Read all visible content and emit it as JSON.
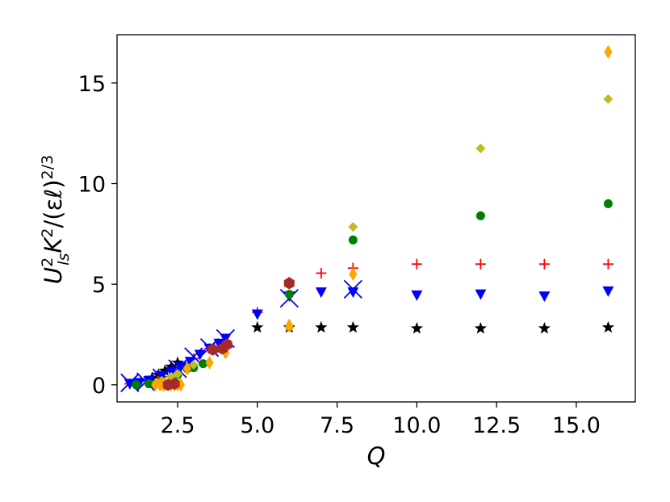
{
  "chart_data": {
    "type": "scatter",
    "title": "",
    "xlabel": "Q",
    "ylabel": "U_{ls}^2 K^2 / (εℓ)^{2/3}",
    "xlim": [
      0.6,
      16.85
    ],
    "ylim": [
      -0.85,
      17.4
    ],
    "xticks": [
      2.5,
      5.0,
      7.5,
      10.0,
      12.5,
      15.0
    ],
    "xtick_labels": [
      "2.5",
      "5.0",
      "7.5",
      "10.0",
      "12.5",
      "15.0"
    ],
    "yticks": [
      0,
      5,
      10,
      15
    ],
    "ytick_labels": [
      "0",
      "5",
      "10",
      "15"
    ],
    "grid": false,
    "legend": "none",
    "series": [
      {
        "marker": "star",
        "color": "#000000",
        "x": [
          1.7,
          1.9,
          2.1,
          2.3,
          2.5,
          5,
          6,
          7,
          8,
          10,
          12,
          14,
          16
        ],
        "y": [
          0.35,
          0.5,
          0.7,
          0.9,
          1.1,
          2.85,
          2.85,
          2.85,
          2.85,
          2.8,
          2.8,
          2.8,
          2.85
        ]
      },
      {
        "marker": "plus",
        "color": "#ff0000",
        "x": [
          1.0,
          1.5,
          2.0,
          2.5,
          3.0,
          3.5,
          4.0,
          5,
          6,
          7,
          8,
          10,
          12,
          14,
          16
        ],
        "y": [
          0.05,
          0.2,
          0.4,
          0.85,
          1.3,
          1.8,
          2.2,
          3.6,
          5.1,
          5.55,
          5.8,
          6.0,
          6.0,
          6.0,
          6.0
        ]
      },
      {
        "marker": "triangle-down",
        "color": "#0000ff",
        "x": [
          1.0,
          1.3,
          1.6,
          2.0,
          2.3,
          2.6,
          2.9,
          3.2,
          3.5,
          3.8,
          4.0,
          5,
          6,
          7,
          8,
          10,
          12,
          14,
          16
        ],
        "y": [
          0.05,
          0.1,
          0.2,
          0.45,
          0.65,
          0.9,
          1.15,
          1.5,
          1.8,
          2.05,
          2.3,
          3.5,
          4.4,
          4.6,
          4.6,
          4.45,
          4.5,
          4.4,
          4.65
        ]
      },
      {
        "marker": "x",
        "color": "#0000ff",
        "x": [
          1.0,
          1.5,
          2.0,
          2.5,
          3.0,
          3.5,
          4.0,
          6,
          8
        ],
        "y": [
          0.1,
          0.15,
          0.35,
          0.8,
          1.4,
          1.85,
          2.3,
          4.3,
          4.75
        ]
      },
      {
        "marker": "circle",
        "color": "#008000",
        "x": [
          1.2,
          1.6,
          2.0,
          2.5,
          2.8,
          3.0,
          3.3,
          6,
          8,
          12,
          16
        ],
        "y": [
          0.0,
          0.05,
          0.2,
          0.5,
          0.8,
          0.85,
          1.05,
          4.5,
          7.2,
          8.4,
          9.0
        ]
      },
      {
        "marker": "diamond",
        "color": "#bcbd22",
        "x": [
          2.0,
          2.3,
          2.5,
          3.0,
          4.0,
          6,
          8,
          12,
          16
        ],
        "y": [
          0.2,
          0.4,
          0.55,
          1.0,
          1.8,
          2.85,
          7.85,
          11.75,
          14.2
        ]
      },
      {
        "marker": "thin-diamond",
        "color": "#ffa500",
        "x": [
          1.8,
          1.95,
          2.05,
          2.1,
          2.2,
          2.3,
          2.4,
          2.5,
          2.6,
          2.8,
          3.5,
          4.0,
          6,
          8,
          16
        ],
        "y": [
          0.0,
          0.0,
          0.0,
          0.0,
          0.0,
          0.0,
          0.0,
          0.0,
          0.0,
          0.8,
          1.1,
          1.6,
          2.95,
          5.5,
          16.55
        ]
      },
      {
        "marker": "hexagon",
        "color": "#a52a2a",
        "x": [
          2.2,
          2.4,
          3.6,
          3.9,
          4.05,
          6
        ],
        "y": [
          0.0,
          0.05,
          1.75,
          1.8,
          2.0,
          5.05
        ]
      }
    ]
  }
}
